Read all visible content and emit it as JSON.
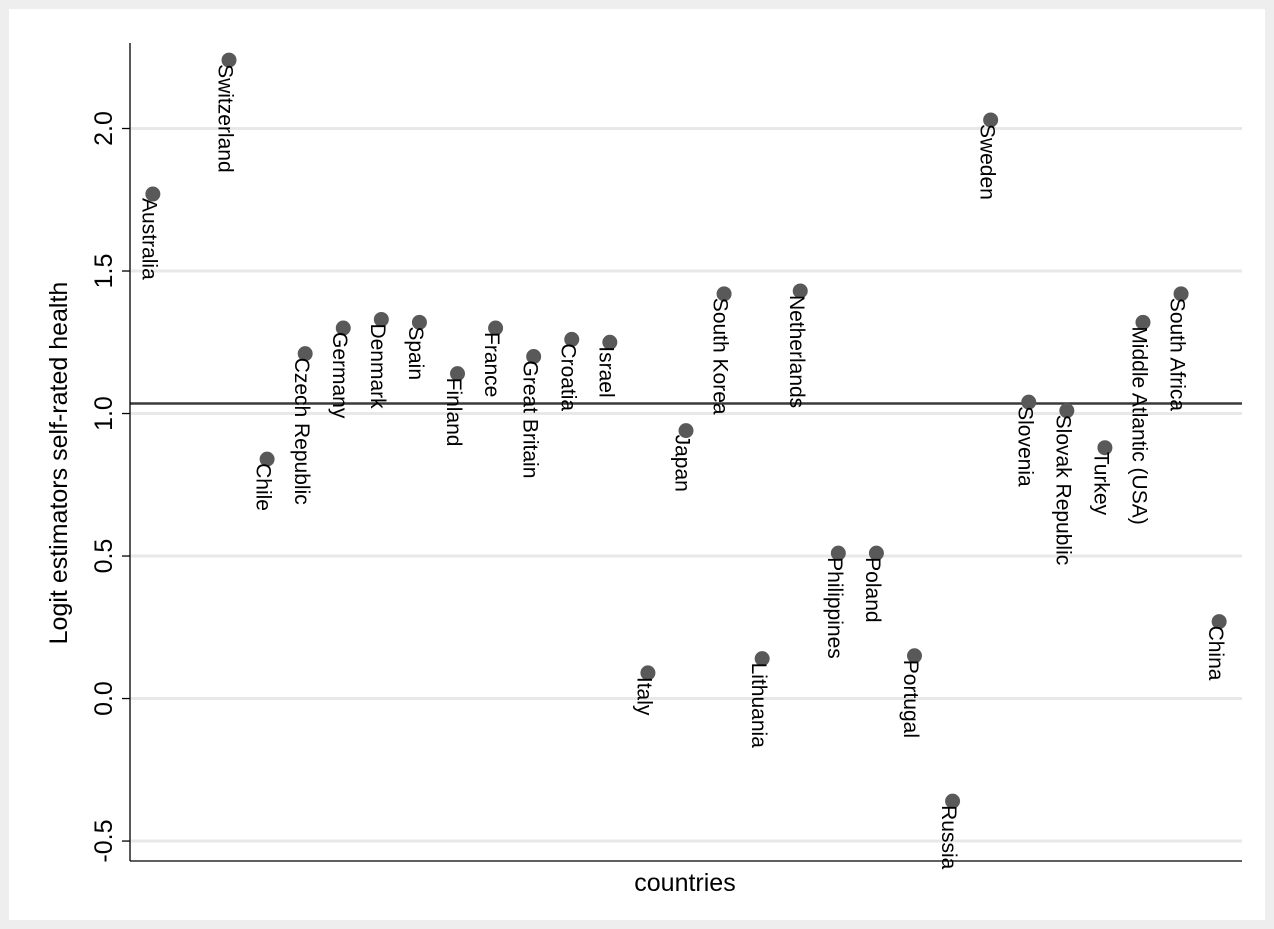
{
  "chart_data": {
    "type": "scatter",
    "title": "",
    "xlabel": "countries",
    "ylabel": "Logit estimators self-rated health",
    "ylim": [
      -0.57,
      2.3
    ],
    "yticks": [
      -0.5,
      0.0,
      0.5,
      1.0,
      1.5,
      2.0
    ],
    "ytick_labels": [
      "-0.5",
      "0.0",
      "0.5",
      "1.0",
      "1.5",
      "2.0"
    ],
    "grid": true,
    "reference_line": 1.035,
    "marker_color": "#595959",
    "grid_color": "#e8e8e8",
    "points": [
      {
        "label": "Australia",
        "x": 1,
        "y": 1.77
      },
      {
        "label": "Switzerland",
        "x": 3,
        "y": 2.24
      },
      {
        "label": "Chile",
        "x": 4,
        "y": 0.84
      },
      {
        "label": "Czech Republic",
        "x": 5,
        "y": 1.21
      },
      {
        "label": "Germany",
        "x": 6,
        "y": 1.3
      },
      {
        "label": "Denmark",
        "x": 7,
        "y": 1.33
      },
      {
        "label": "Spain",
        "x": 8,
        "y": 1.32
      },
      {
        "label": "Finland",
        "x": 9,
        "y": 1.14
      },
      {
        "label": "France",
        "x": 10,
        "y": 1.3
      },
      {
        "label": "Great Britain",
        "x": 11,
        "y": 1.2
      },
      {
        "label": "Croatia",
        "x": 12,
        "y": 1.26
      },
      {
        "label": "Israel",
        "x": 13,
        "y": 1.25
      },
      {
        "label": "Italy",
        "x": 14,
        "y": 0.09
      },
      {
        "label": "Japan",
        "x": 15,
        "y": 0.94
      },
      {
        "label": "South Korea",
        "x": 16,
        "y": 1.42
      },
      {
        "label": "Lithuania",
        "x": 17,
        "y": 0.14
      },
      {
        "label": "Netherlands",
        "x": 18,
        "y": 1.43
      },
      {
        "label": "Philippines",
        "x": 19,
        "y": 0.51
      },
      {
        "label": "Poland",
        "x": 20,
        "y": 0.51
      },
      {
        "label": "Portugal",
        "x": 21,
        "y": 0.15
      },
      {
        "label": "Russia",
        "x": 22,
        "y": -0.36
      },
      {
        "label": "Sweden",
        "x": 23,
        "y": 2.03
      },
      {
        "label": "Slovenia",
        "x": 24,
        "y": 1.04
      },
      {
        "label": "Slovak Republic",
        "x": 25,
        "y": 1.01
      },
      {
        "label": "Turkey",
        "x": 26,
        "y": 0.88
      },
      {
        "label": "Middle Atlantic (USA)",
        "x": 27,
        "y": 1.32
      },
      {
        "label": "South Africa",
        "x": 28,
        "y": 1.42
      },
      {
        "label": "China",
        "x": 29,
        "y": 0.27
      }
    ]
  }
}
